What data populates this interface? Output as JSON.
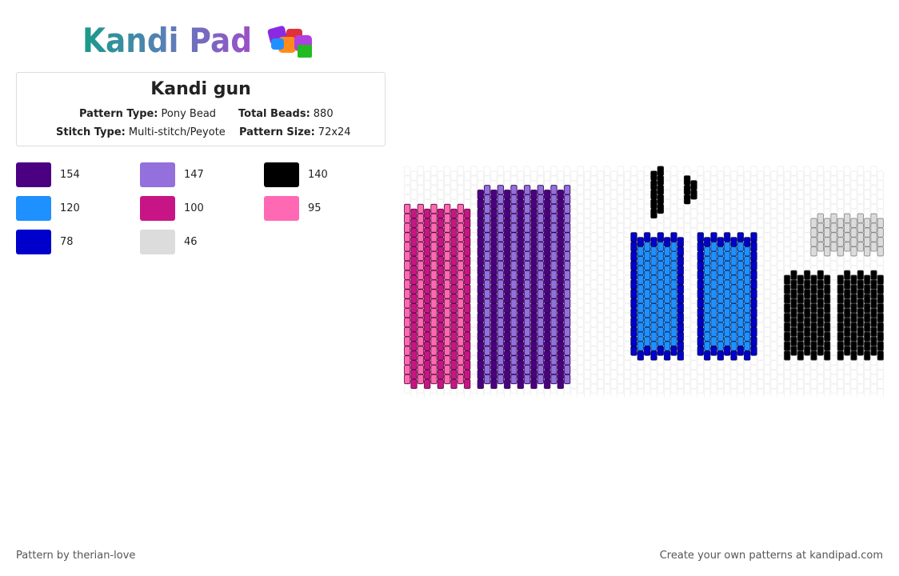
{
  "logo": {
    "text": "Kandi Pad"
  },
  "pattern": {
    "title": "Kandi gun",
    "fields": [
      {
        "label": "Pattern Type:",
        "value": "Pony Bead"
      },
      {
        "label": "Total Beads:",
        "value": 880
      },
      {
        "label": "Stitch Type:",
        "value": "Multi-stitch/Peyote"
      },
      {
        "label": "Pattern Size:",
        "value": "72x24"
      }
    ]
  },
  "colors": [
    {
      "color": "#4b0082",
      "count": 154
    },
    {
      "color": "#9370db",
      "count": 147
    },
    {
      "color": "#000000",
      "count": 140
    },
    {
      "color": "#1e90ff",
      "count": 120
    },
    {
      "color": "#c71585",
      "count": 100
    },
    {
      "color": "#ff69b4",
      "count": 95
    },
    {
      "color": "#0000cd",
      "count": 78
    },
    {
      "color": "#dcdcdc",
      "count": 46
    }
  ],
  "footer": {
    "credit": "Pattern by therian-love",
    "promo": "Create your own patterns at kandipad.com"
  }
}
